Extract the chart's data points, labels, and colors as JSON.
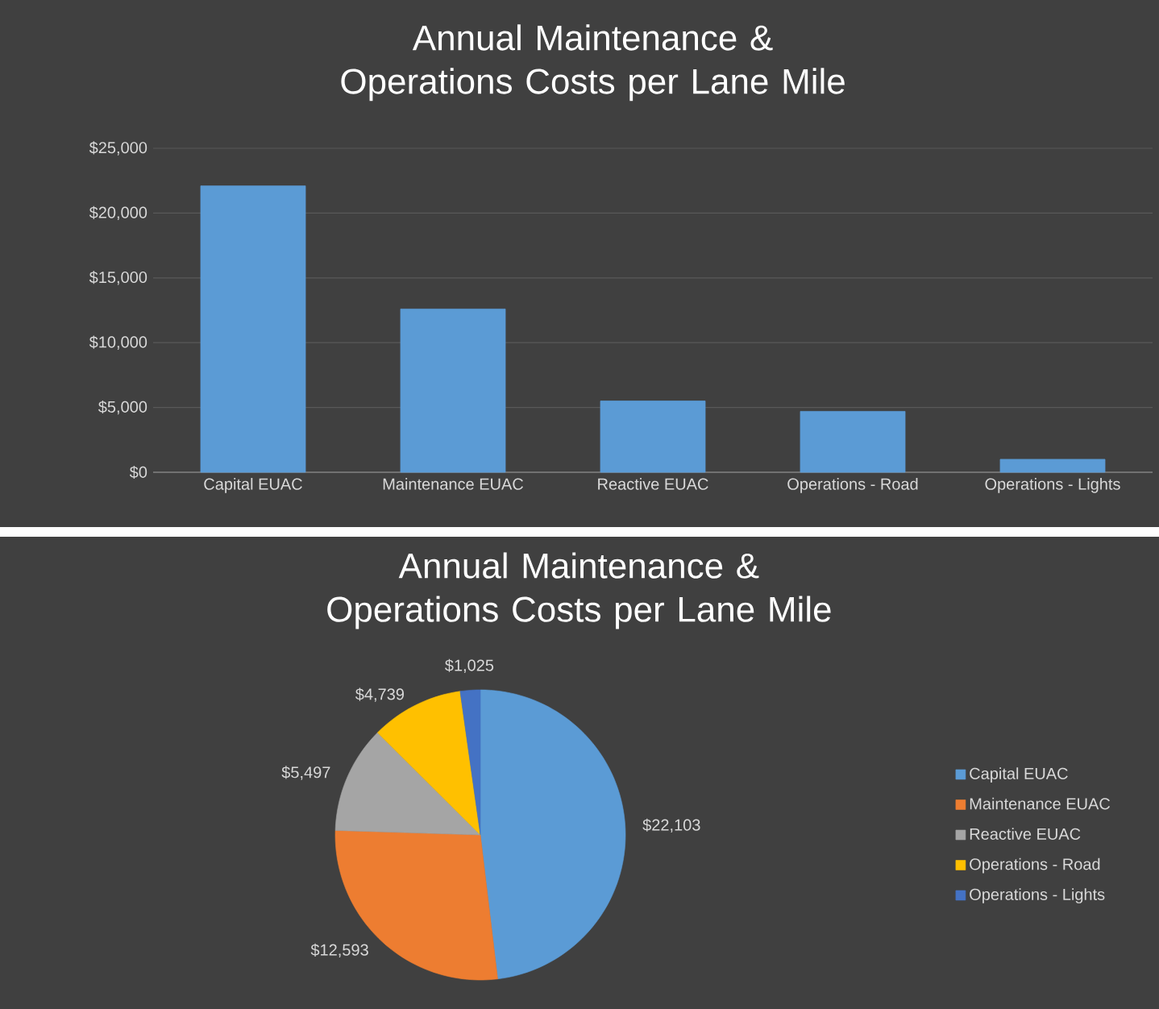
{
  "chart_data": [
    {
      "type": "bar",
      "title": "Annual Maintenance & Operations Costs per Lane Mile",
      "categories": [
        "Capital EUAC",
        "Maintenance EUAC",
        "Reactive EUAC",
        "Operations - Road",
        "Operations - Lights"
      ],
      "values": [
        22100,
        12600,
        5500,
        4700,
        1000
      ],
      "color": "#5b9bd5",
      "ylim": [
        0,
        25000
      ],
      "yticks": [
        {
          "value": 0,
          "label": "$0"
        },
        {
          "value": 5000,
          "label": "$5,000"
        },
        {
          "value": 10000,
          "label": "$10,000"
        },
        {
          "value": 15000,
          "label": "$15,000"
        },
        {
          "value": 20000,
          "label": "$20,000"
        },
        {
          "value": 25000,
          "label": "$25,000"
        }
      ],
      "grid": "y"
    },
    {
      "type": "pie",
      "title": "Annual Maintenance & Operations Costs per Lane Mile",
      "categories": [
        "Capital EUAC",
        "Maintenance EUAC",
        "Reactive EUAC",
        "Operations - Road",
        "Operations - Lights"
      ],
      "values": [
        22103,
        12593,
        5497,
        4739,
        1025
      ],
      "colors": [
        "#5b9bd5",
        "#ed7d31",
        "#a5a5a5",
        "#ffc000",
        "#4472c4"
      ],
      "value_labels": [
        "$22,103",
        "$12,593",
        "$5,497",
        "$4,739",
        "$1,025"
      ],
      "legend": "right"
    }
  ]
}
